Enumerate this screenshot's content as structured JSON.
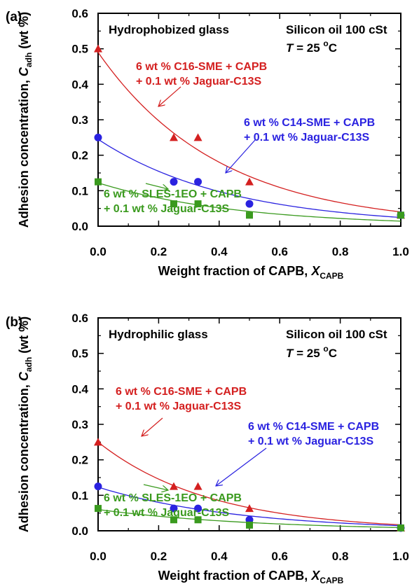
{
  "chart_data": [
    {
      "type": "scatter",
      "panel_label": "(a)",
      "xlabel": "Weight fraction of CAPB, ",
      "xlabel_var": "X",
      "xlabel_sub": "CAPB",
      "ylabel": "Adhesion concentration, ",
      "ylabel_var": "C",
      "ylabel_sub": "adh",
      "ylabel_unit": " (wt %)",
      "xlim": [
        0.0,
        1.0
      ],
      "ylim": [
        0.0,
        0.6
      ],
      "x_ticks": [
        "0.0",
        "0.2",
        "0.4",
        "0.6",
        "0.8",
        "1.0"
      ],
      "y_ticks": [
        "0.0",
        "0.1",
        "0.2",
        "0.3",
        "0.4",
        "0.5",
        "0.6"
      ],
      "annotations": {
        "surface": "Hydrophobized glass",
        "oil": "Silicon oil 100 cSt",
        "temp_var": "T",
        "temp_value": " = 25 ",
        "temp_deg": "o",
        "temp_unit": "C"
      },
      "series": [
        {
          "label_line1": "6 wt % C16-SME + CAPB",
          "label_line2": "+ 0.1 wt % Jaguar-C13S",
          "color": "#d42020",
          "marker": "triangle",
          "x": [
            0.0,
            0.25,
            0.33,
            0.5,
            1.0
          ],
          "y": [
            0.5,
            0.25,
            0.25,
            0.125,
            0.031
          ]
        },
        {
          "label_line1": "6 wt % C14-SME + CAPB",
          "label_line2": "+ 0.1 wt % Jaguar-C13S",
          "color": "#2a22e0",
          "marker": "circle",
          "x": [
            0.0,
            0.25,
            0.33,
            0.5,
            1.0
          ],
          "y": [
            0.25,
            0.125,
            0.125,
            0.063,
            0.031
          ]
        },
        {
          "label_line1": "6 wt % SLES-1EO + CAPB",
          "label_line2": "+ 0.1 wt % Jaguar-C13S",
          "color": "#3a9a1e",
          "marker": "square",
          "x": [
            0.0,
            0.25,
            0.33,
            0.5,
            1.0
          ],
          "y": [
            0.125,
            0.063,
            0.063,
            0.031,
            0.031
          ]
        }
      ],
      "fit_curves": [
        {
          "color": "#d42020",
          "y0": 0.49,
          "k": 2.5
        },
        {
          "color": "#2a22e0",
          "y0": 0.245,
          "k": 2.3
        },
        {
          "color": "#3a9a1e",
          "y0": 0.122,
          "k": 2.15
        }
      ]
    },
    {
      "type": "scatter",
      "panel_label": "(b)",
      "xlabel": "Weight fraction of CAPB, ",
      "xlabel_var": "X",
      "xlabel_sub": "CAPB",
      "ylabel": "Adhesion concentration, ",
      "ylabel_var": "C",
      "ylabel_sub": "adh",
      "ylabel_unit": " (wt %)",
      "xlim": [
        0.0,
        1.0
      ],
      "ylim": [
        0.0,
        0.6
      ],
      "x_ticks": [
        "0.0",
        "0.2",
        "0.4",
        "0.6",
        "0.8",
        "1.0"
      ],
      "y_ticks": [
        "0.0",
        "0.1",
        "0.2",
        "0.3",
        "0.4",
        "0.5",
        "0.6"
      ],
      "annotations": {
        "surface": "Hydrophilic glass",
        "oil": "Silicon oil 100 cSt",
        "temp_var": "T",
        "temp_value": " = 25 ",
        "temp_deg": "o",
        "temp_unit": "C"
      },
      "series": [
        {
          "label_line1": "6 wt % C16-SME + CAPB",
          "label_line2": "+ 0.1 wt % Jaguar-C13S",
          "color": "#d42020",
          "marker": "triangle",
          "x": [
            0.0,
            0.25,
            0.33,
            0.5,
            1.0
          ],
          "y": [
            0.25,
            0.125,
            0.125,
            0.063,
            0.008
          ]
        },
        {
          "label_line1": "6 wt % C14-SME + CAPB",
          "label_line2": "+ 0.1 wt % Jaguar-C13S",
          "color": "#2a22e0",
          "marker": "circle",
          "x": [
            0.0,
            0.25,
            0.33,
            0.5,
            1.0
          ],
          "y": [
            0.125,
            0.063,
            0.063,
            0.031,
            0.008
          ]
        },
        {
          "label_line1": "6 wt % SLES-1EO + CAPB",
          "label_line2": "+ 0.1 wt % Jaguar-C13S",
          "color": "#3a9a1e",
          "marker": "square",
          "x": [
            0.0,
            0.25,
            0.33,
            0.5,
            1.0
          ],
          "y": [
            0.063,
            0.031,
            0.031,
            0.016,
            0.008
          ]
        }
      ],
      "fit_curves": [
        {
          "color": "#d42020",
          "y0": 0.25,
          "k": 2.7
        },
        {
          "color": "#2a22e0",
          "y0": 0.123,
          "k": 2.15
        },
        {
          "color": "#3a9a1e",
          "y0": 0.06,
          "k": 1.9
        }
      ]
    }
  ]
}
